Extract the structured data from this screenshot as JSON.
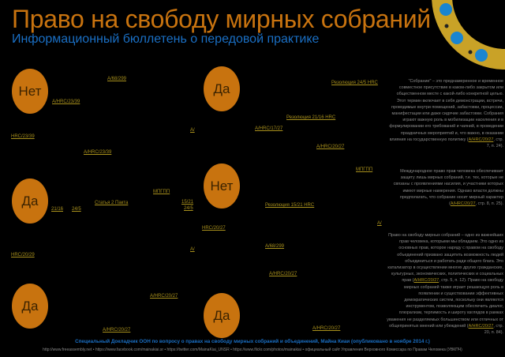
{
  "header": {
    "title": "Право на свободу мирных собраний",
    "subtitle": "Информационный бюллетень о передовой практике"
  },
  "circles": [
    "Нет",
    "Да",
    "Да",
    "Нет",
    "Да",
    "Да"
  ],
  "links": [
    "A/68/299",
    "A/HRC/23/39",
    "HRC/23/39",
    "A/HRC/23/39",
    "A/",
    "Резолюция 24/5 HRC",
    "Резолюция 21/16 HRC",
    "A/HRC/17/27",
    "A/HRC/20/27",
    "МПГПП",
    "МПГПП",
    "Статья 2 Пакта",
    "15/21",
    "24/5",
    "21/16",
    "24/5",
    "Резолюция 15/21 HRC",
    "HRC/20/27",
    "A/",
    "A/",
    "HRC/20/29",
    "A/68/299",
    "A/HRC/20/27",
    "A/HRC/20/27",
    "A/HRC/20/27",
    "A/HRC/20/27"
  ],
  "paragraphs": [
    {
      "text": "\"Собрание\" – это предна­меренное и временное совместное присутствие в каком-либо закрытом или общественном месте с какой-либо конкретной целью. Этот термин включает в себя демонстрации, встречи, проводимые внутри помещений, забастовки, процессии, манифестации или даже сидячие забастовки. Собрания играют важную роль в мобилизации населения и в формулировании его требований и чаяний, в проведении праздничных мероприятий и, что важно, в оказании влияния на государственную политику (",
      "ref": "A/HRC/20/27",
      "tail": ", стр. 7, п. 24)."
    },
    {
      "text": "Международное право прав человека обеспечивает защиту лишь мирных собраний, т.е. тех, которые не связаны с проявлениями насилия, и участники которых имеют мирные намерения. Однако власти должны предполагать, что собрание носит мирный характер (",
      "ref": "A/HRC/20/27",
      "tail": ", стр. 8, п. 25)."
    },
    {
      "text": "Право на свободу мирных собраний – одно из важнейших прав человека, которыми мы обладаем. Это одно из основных прав, которое наряду с правом на свободу объединений призвано защитить возможность людей объединиться и работать ради общего блага. Это катализатор в осуществлении многих других гражданских, культурных, экономических, политических и социальных прав (",
      "ref": "A/HRC/20/27",
      "tail": ", стр. 5, п. 12). Право на свободу мирных собраний также играет решающую роль в появлении и существовании эффективных демократических систем, поскольку они являются инструментом, позволяющим обеспечить диалог, плюрализм, терпимость и широту взглядов в рамках уважения не разделяемых большинством или отличных от общепринятых мнений или убеждений (",
      "ref2": "A/HRC/20/27",
      "tail2": ", стр. 20, п. 84)."
    }
  ],
  "footer": {
    "line1": "Специальный Докладчик ООН по вопросу о правах на свободу мирных собраний и объединений, Майна Киаи (опубликовано в ноябре 2014 г.)",
    "line2": "http://www.freeassembly.net • https://www.facebook.com/mainakiai.sr • https://twitter.com/MainaKiai_UNSR • https://www.flickr.com/photos/mainakiai • официальный сайт Управления Верховного Комиссара по Правам Человека (УВКПЧ)"
  },
  "colors": {
    "accent": "#c8730f",
    "blue": "#1a6fc4",
    "link": "#a8901c",
    "logo_ring": "#c9a227"
  }
}
